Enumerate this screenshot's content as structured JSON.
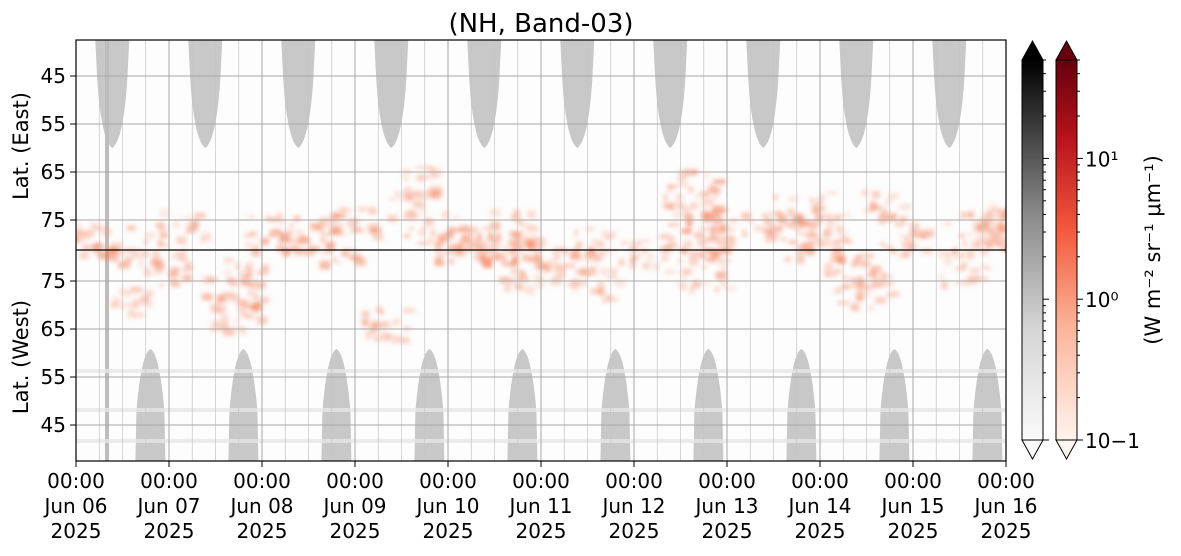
{
  "chart_data": {
    "type": "heatmap",
    "title": "(NH, Band-03)",
    "ylabel_top": "Lat. (East)",
    "ylabel_bottom": "Lat. (West)",
    "y_top_ticks": [
      "45",
      "55",
      "65",
      "75"
    ],
    "y_bottom_ticks": [
      "75",
      "65",
      "55",
      "45"
    ],
    "x_ticks": [
      {
        "time": "00:00",
        "date": "Jun 06",
        "year": "2025"
      },
      {
        "time": "00:00",
        "date": "Jun 07",
        "year": "2025"
      },
      {
        "time": "00:00",
        "date": "Jun 08",
        "year": "2025"
      },
      {
        "time": "00:00",
        "date": "Jun 09",
        "year": "2025"
      },
      {
        "time": "00:00",
        "date": "Jun 10",
        "year": "2025"
      },
      {
        "time": "00:00",
        "date": "Jun 11",
        "year": "2025"
      },
      {
        "time": "00:00",
        "date": "Jun 12",
        "year": "2025"
      },
      {
        "time": "00:00",
        "date": "Jun 13",
        "year": "2025"
      },
      {
        "time": "00:00",
        "date": "Jun 14",
        "year": "2025"
      },
      {
        "time": "00:00",
        "date": "Jun 15",
        "year": "2025"
      },
      {
        "time": "00:00",
        "date": "Jun 16",
        "year": "2025"
      }
    ],
    "colorbar": {
      "scale": "log",
      "range": [
        0.1,
        50
      ],
      "tick_labels": [
        "10−1",
        "10⁰",
        "10¹"
      ],
      "label": "(W m⁻² sr⁻¹ μm⁻¹)",
      "gray_cmap": "Greys",
      "red_cmap": "Reds"
    },
    "grid": true,
    "colors": {
      "mask_gray": "#c8c8c8",
      "aurora_red": "#f4845f",
      "equator_line": "#000000"
    },
    "notes_days": 10
  }
}
